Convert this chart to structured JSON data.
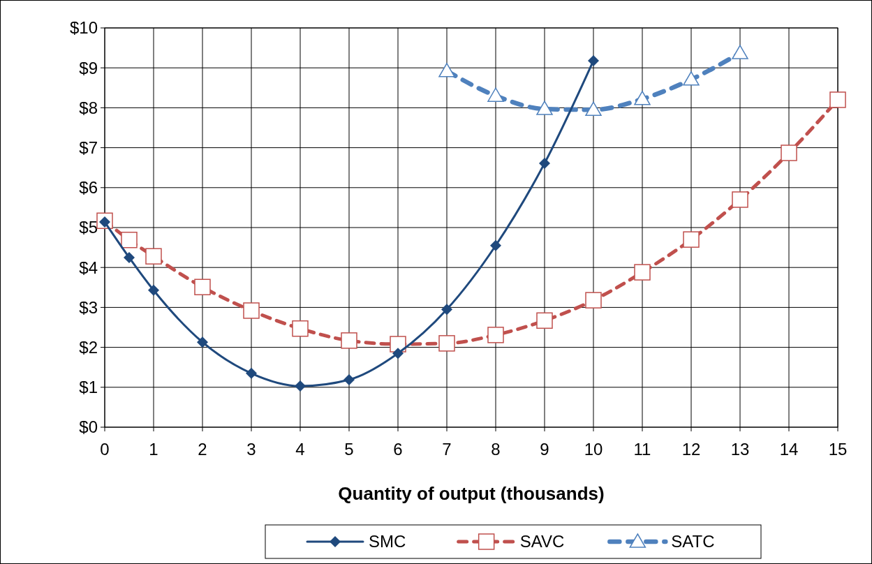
{
  "chart_data": {
    "type": "line",
    "xlabel": "Quantity of output (thousands)",
    "xlim": [
      0,
      15
    ],
    "xticks": [
      0,
      1,
      2,
      3,
      4,
      5,
      6,
      7,
      8,
      9,
      10,
      11,
      12,
      13,
      14,
      15
    ],
    "ylim": [
      0,
      10
    ],
    "yticks": [
      {
        "value": 0,
        "label": "$0"
      },
      {
        "value": 1,
        "label": "$1"
      },
      {
        "value": 2,
        "label": "$2"
      },
      {
        "value": 3,
        "label": "$3"
      },
      {
        "value": 4,
        "label": "$4"
      },
      {
        "value": 5,
        "label": "$5"
      },
      {
        "value": 6,
        "label": "$6"
      },
      {
        "value": 7,
        "label": "$7"
      },
      {
        "value": 8,
        "label": "$8"
      },
      {
        "value": 9,
        "label": "$9"
      },
      {
        "value": 10,
        "label": "$10"
      }
    ],
    "grid": true,
    "legend": "bottom",
    "series": [
      {
        "name": "SMC",
        "color": "#1f497d",
        "marker": "diamond",
        "line_style": "solid",
        "x": [
          0,
          0.5,
          1,
          2,
          3,
          4,
          5,
          6,
          7,
          8,
          9,
          10
        ],
        "values": [
          5.14,
          4.25,
          3.43,
          2.13,
          1.35,
          1.03,
          1.19,
          1.85,
          2.95,
          4.55,
          6.61,
          9.18
        ]
      },
      {
        "name": "SAVC",
        "color": "#c0504d",
        "marker": "square",
        "line_style": "dashed",
        "x": [
          0,
          0.5,
          1,
          2,
          3,
          4,
          5,
          6,
          7,
          8,
          9,
          10,
          11,
          12,
          13,
          14,
          15
        ],
        "values": [
          5.17,
          4.69,
          4.28,
          3.51,
          2.92,
          2.47,
          2.17,
          2.08,
          2.1,
          2.31,
          2.67,
          3.18,
          3.88,
          4.7,
          5.7,
          6.87,
          8.2
        ]
      },
      {
        "name": "SATC",
        "color": "#4f81bd",
        "marker": "triangle",
        "line_style": "dashed",
        "x": [
          7,
          8,
          9,
          10,
          11,
          12,
          13
        ],
        "values": [
          8.92,
          8.3,
          7.97,
          7.95,
          8.22,
          8.71,
          9.37
        ]
      }
    ]
  }
}
